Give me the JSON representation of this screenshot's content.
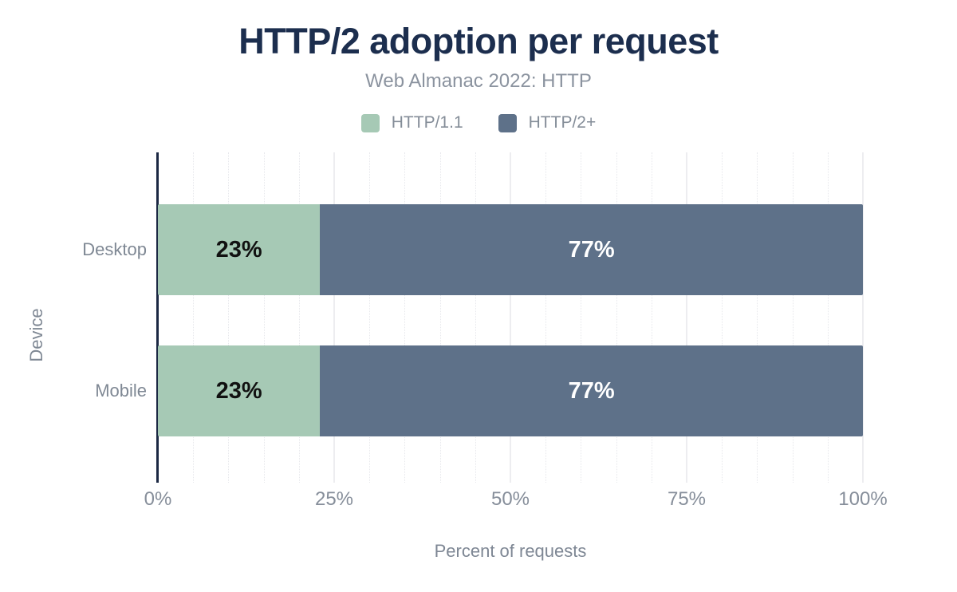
{
  "chart": {
    "title": "HTTP/2 adoption per request",
    "subtitle": "Web Almanac 2022: HTTP"
  },
  "chart_data": {
    "type": "bar",
    "orientation": "horizontal",
    "stacked": true,
    "title": "HTTP/2 adoption per request",
    "subtitle": "Web Almanac 2022: HTTP",
    "categories": [
      "Desktop",
      "Mobile"
    ],
    "series": [
      {
        "name": "HTTP/1.1",
        "color": "#a6c9b5",
        "label_color": "#111111",
        "values": [
          23,
          23
        ]
      },
      {
        "name": "HTTP/2+",
        "color": "#5e7189",
        "label_color": "#ffffff",
        "values": [
          77,
          77
        ]
      }
    ],
    "value_suffix": "%",
    "xlabel": "Percent of requests",
    "ylabel": "Device",
    "xlim": [
      0,
      100
    ],
    "xticks": [
      {
        "value": 0,
        "label": "0%"
      },
      {
        "value": 25,
        "label": "25%"
      },
      {
        "value": 50,
        "label": "50%"
      },
      {
        "value": 75,
        "label": "75%"
      },
      {
        "value": 100,
        "label": "100%"
      }
    ],
    "minor_tick_step": 5,
    "grid": "vertical",
    "legend_position": "top"
  },
  "colors": {
    "title": "#1c2e4e",
    "subtitle_text": "#8b939f",
    "axis_line": "#1b2843",
    "grid_major": "#ededf0",
    "grid_minor": "#e7e8ec",
    "tick_text": "#868e9a",
    "category_text": "#7f8894",
    "background": "#ffffff"
  }
}
